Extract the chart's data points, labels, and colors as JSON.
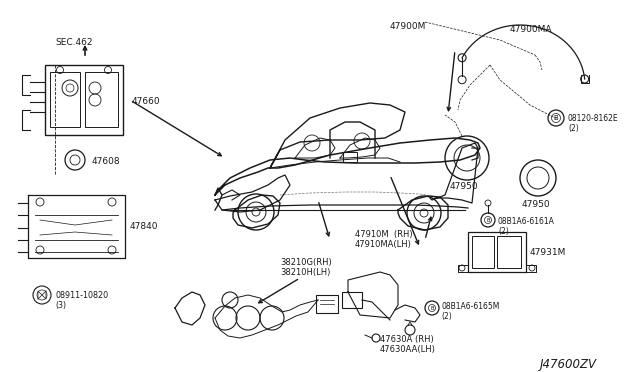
{
  "background_color": "#ffffff",
  "diagram_code": "J47600ZV",
  "line_color": "#1a1a1a",
  "text_color": "#1a1a1a",
  "font_size": 6.5,
  "figsize": [
    6.4,
    3.72
  ],
  "dpi": 100,
  "labels": {
    "sec462": "SEC.462",
    "p47660": "47660",
    "p47608": "47608",
    "p47840": "47840",
    "p08911": "08911-10820\n(3)",
    "p47900M": "47900M",
    "p47900MA": "47900MA",
    "p08120": "08120-8162E\n(2)",
    "p47950a": "47950",
    "p47950b": "47950",
    "p08b1a6_6161": "08B1A6-6161A\n(2)",
    "p47931": "47931M",
    "p47910": "47910M  (RH)\n47910MA(LH)",
    "p38210": "38210G(RH)\n38210H(LH)",
    "p08b1a6_6165": "08B1A6-6165M\n(2)",
    "p47630": "47630A (RH)\n47630AA(LH)"
  }
}
